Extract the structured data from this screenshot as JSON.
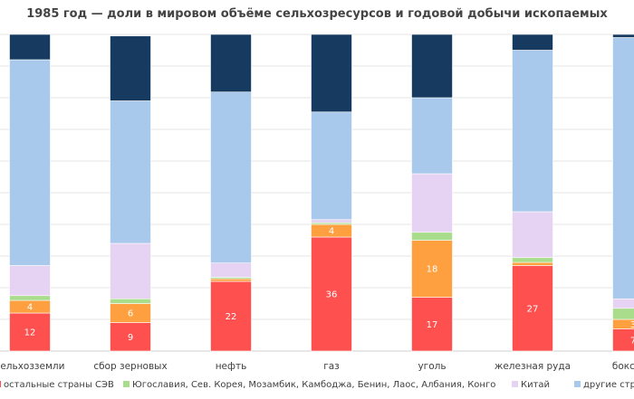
{
  "chart_data": {
    "type": "bar",
    "stacked": true,
    "normalized": true,
    "title": "1985 год — доли в мировом объёме сельхозресурсов и годовой добычи ископаемых",
    "xlabel": "",
    "ylabel": "",
    "ylim": [
      0,
      100
    ],
    "grid": true,
    "legend_position": "bottom",
    "categories": [
      "сельхозземли",
      "сбор зерновых",
      "нефть",
      "газ",
      "уголь",
      "железная руда",
      "бокситы"
    ],
    "series": [
      {
        "name": "остальные страны СЭВ",
        "color": "#ff5050",
        "values": [
          12,
          9,
          22,
          36,
          17,
          27,
          7
        ],
        "labels": [
          "12",
          "9",
          "22",
          "36",
          "17",
          "27",
          "7"
        ]
      },
      {
        "name": "",
        "color": "#ffa040",
        "values": [
          4,
          6,
          0.8,
          4,
          18,
          1,
          3
        ],
        "labels": [
          "4",
          "6",
          "",
          "4",
          "18",
          "",
          "3"
        ]
      },
      {
        "name": "Югославия, Сев. Корея, Мозамбик, Камбоджа, Бенин, Лаос, Албания, Конго",
        "color": "#a9dd8c",
        "values": [
          1.5,
          1.5,
          0.5,
          0.5,
          2.5,
          1.5,
          3.5
        ],
        "labels": [
          "",
          "",
          "",
          "",
          "",
          "",
          ""
        ]
      },
      {
        "name": "Китай",
        "color": "#e6d2f2",
        "values": [
          9.5,
          17.5,
          4.5,
          1,
          18.5,
          14.5,
          3
        ],
        "labels": [
          "",
          "",
          "",
          "",
          "",
          "",
          ""
        ]
      },
      {
        "name": "другие стр",
        "color": "#a8c9eb",
        "values": [
          65,
          45,
          54,
          34,
          24,
          51,
          82.5
        ],
        "labels": [
          "",
          "",
          "",
          "",
          "",
          "",
          ""
        ]
      },
      {
        "name": "",
        "color": "#173a60",
        "values": [
          8,
          20.5,
          18.2,
          24.5,
          20,
          5,
          1
        ],
        "labels": [
          "",
          "",
          "",
          "",
          "",
          "",
          ""
        ]
      }
    ]
  }
}
